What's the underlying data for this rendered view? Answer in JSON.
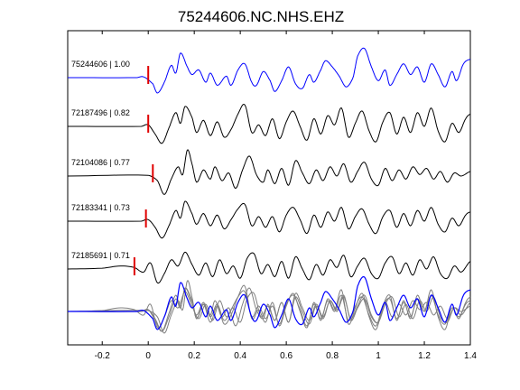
{
  "chart_data": {
    "type": "line",
    "title": "75244606.NC.NHS.EHZ",
    "xlabel": "",
    "ylabel": "",
    "xlim": [
      -0.35,
      1.4
    ],
    "x_ticks": [
      "-0.2",
      "0",
      "0.2",
      "0.4",
      "0.6",
      "0.8",
      "1",
      "1.2",
      "1.4"
    ],
    "x_tick_values": [
      -0.2,
      0,
      0.2,
      0.4,
      0.6,
      0.8,
      1.0,
      1.2,
      1.4
    ],
    "grid": false,
    "colors": {
      "reference": "#0000ff",
      "trace": "#000000",
      "overlay": "#808080",
      "pick": "#e00000"
    },
    "traces": [
      {
        "label": "75244606 | 1.00",
        "event_id": "75244606",
        "correlation": 1.0,
        "pick_time": 0.0,
        "reference": true,
        "anchors": [
          [
            -0.35,
            0
          ],
          [
            -0.05,
            0
          ],
          [
            -0.02,
            0.05
          ],
          [
            0.02,
            -0.4
          ],
          [
            0.04,
            -1.0
          ],
          [
            0.07,
            -0.3
          ],
          [
            0.1,
            0.8
          ],
          [
            0.12,
            0.3
          ],
          [
            0.14,
            1.6
          ],
          [
            0.17,
            0.7
          ],
          [
            0.19,
            0.2
          ],
          [
            0.22,
            0.5
          ],
          [
            0.25,
            -0.3
          ],
          [
            0.27,
            0.3
          ],
          [
            0.3,
            -0.5
          ],
          [
            0.34,
            0.1
          ],
          [
            0.36,
            -0.5
          ],
          [
            0.39,
            0.5
          ],
          [
            0.42,
            0.9
          ],
          [
            0.45,
            -0.3
          ],
          [
            0.47,
            -0.5
          ],
          [
            0.5,
            0.4
          ],
          [
            0.53,
            -0.2
          ],
          [
            0.55,
            -0.9
          ],
          [
            0.58,
            -0.2
          ],
          [
            0.61,
            0.7
          ],
          [
            0.64,
            -0.4
          ],
          [
            0.67,
            -0.7
          ],
          [
            0.7,
            0.2
          ],
          [
            0.72,
            -0.3
          ],
          [
            0.75,
            0.5
          ],
          [
            0.77,
            1.1
          ],
          [
            0.8,
            0.7
          ],
          [
            0.83,
            0.1
          ],
          [
            0.86,
            -0.6
          ],
          [
            0.89,
            0.0
          ],
          [
            0.91,
            1.4
          ],
          [
            0.94,
            1.9
          ],
          [
            0.97,
            0.7
          ],
          [
            1.0,
            -0.2
          ],
          [
            1.03,
            0.5
          ],
          [
            1.05,
            -0.5
          ],
          [
            1.08,
            0.2
          ],
          [
            1.11,
            0.9
          ],
          [
            1.14,
            0.2
          ],
          [
            1.17,
            0.7
          ],
          [
            1.2,
            -0.3
          ],
          [
            1.23,
            0.9
          ],
          [
            1.26,
            0.2
          ],
          [
            1.29,
            -0.6
          ],
          [
            1.32,
            0.4
          ],
          [
            1.34,
            -0.2
          ],
          [
            1.37,
            0.9
          ],
          [
            1.4,
            1.2
          ]
        ]
      },
      {
        "label": "72187496 | 0.82",
        "event_id": "72187496",
        "correlation": 0.82,
        "pick_time": 0.0,
        "reference": false,
        "anchors": [
          [
            -0.35,
            0
          ],
          [
            -0.03,
            0
          ],
          [
            0.0,
            0.1
          ],
          [
            0.03,
            -0.5
          ],
          [
            0.06,
            -1.1
          ],
          [
            0.09,
            -0.1
          ],
          [
            0.12,
            0.9
          ],
          [
            0.14,
            0.2
          ],
          [
            0.16,
            1.3
          ],
          [
            0.19,
            0.6
          ],
          [
            0.21,
            -0.4
          ],
          [
            0.24,
            0.4
          ],
          [
            0.27,
            -0.6
          ],
          [
            0.3,
            0.3
          ],
          [
            0.33,
            -0.7
          ],
          [
            0.36,
            -0.2
          ],
          [
            0.39,
            0.8
          ],
          [
            0.42,
            1.4
          ],
          [
            0.45,
            -0.4
          ],
          [
            0.48,
            0.1
          ],
          [
            0.51,
            -0.6
          ],
          [
            0.54,
            0.5
          ],
          [
            0.57,
            -0.8
          ],
          [
            0.6,
            0.3
          ],
          [
            0.63,
            1.0
          ],
          [
            0.66,
            0.0
          ],
          [
            0.69,
            -0.9
          ],
          [
            0.72,
            0.5
          ],
          [
            0.75,
            -0.5
          ],
          [
            0.78,
            0.7
          ],
          [
            0.81,
            0.1
          ],
          [
            0.84,
            1.2
          ],
          [
            0.87,
            -0.7
          ],
          [
            0.9,
            0.2
          ],
          [
            0.93,
            1.0
          ],
          [
            0.96,
            -0.3
          ],
          [
            0.99,
            -1.0
          ],
          [
            1.02,
            0.3
          ],
          [
            1.05,
            0.9
          ],
          [
            1.08,
            -0.5
          ],
          [
            1.11,
            0.6
          ],
          [
            1.14,
            -0.4
          ],
          [
            1.17,
            0.9
          ],
          [
            1.2,
            0.0
          ],
          [
            1.23,
            1.2
          ],
          [
            1.26,
            -0.3
          ],
          [
            1.29,
            -1.0
          ],
          [
            1.32,
            0.2
          ],
          [
            1.35,
            -0.4
          ],
          [
            1.38,
            0.5
          ],
          [
            1.4,
            0.8
          ]
        ]
      },
      {
        "label": "72104086 | 0.77",
        "event_id": "72104086",
        "correlation": 0.77,
        "pick_time": 0.02,
        "reference": false,
        "anchors": [
          [
            -0.35,
            0
          ],
          [
            0.0,
            0.05
          ],
          [
            0.04,
            -0.3
          ],
          [
            0.07,
            -1.2
          ],
          [
            0.1,
            -0.2
          ],
          [
            0.13,
            0.6
          ],
          [
            0.15,
            0.1
          ],
          [
            0.17,
            1.7
          ],
          [
            0.19,
            0.8
          ],
          [
            0.21,
            -0.4
          ],
          [
            0.24,
            0.4
          ],
          [
            0.27,
            -0.2
          ],
          [
            0.29,
            0.6
          ],
          [
            0.32,
            -0.3
          ],
          [
            0.35,
            0.2
          ],
          [
            0.38,
            -0.8
          ],
          [
            0.41,
            0.4
          ],
          [
            0.44,
            1.3
          ],
          [
            0.47,
            0.1
          ],
          [
            0.5,
            -0.4
          ],
          [
            0.52,
            0.4
          ],
          [
            0.55,
            -0.5
          ],
          [
            0.58,
            0.5
          ],
          [
            0.61,
            -0.6
          ],
          [
            0.64,
            1.0
          ],
          [
            0.67,
            0.2
          ],
          [
            0.7,
            -0.5
          ],
          [
            0.73,
            0.4
          ],
          [
            0.76,
            -0.3
          ],
          [
            0.79,
            0.6
          ],
          [
            0.82,
            0.0
          ],
          [
            0.85,
            0.8
          ],
          [
            0.88,
            -0.4
          ],
          [
            0.91,
            0.3
          ],
          [
            0.94,
            0.9
          ],
          [
            0.97,
            -0.2
          ],
          [
            1.0,
            -0.6
          ],
          [
            1.03,
            0.5
          ],
          [
            1.06,
            -0.3
          ],
          [
            1.09,
            0.4
          ],
          [
            1.12,
            -0.2
          ],
          [
            1.15,
            0.6
          ],
          [
            1.18,
            0.1
          ],
          [
            1.21,
            0.5
          ],
          [
            1.24,
            -0.2
          ],
          [
            1.27,
            0.3
          ],
          [
            1.3,
            -0.4
          ],
          [
            1.33,
            0.2
          ],
          [
            1.36,
            0.0
          ],
          [
            1.4,
            0.3
          ]
        ]
      },
      {
        "label": "72183341 | 0.73",
        "event_id": "72183341",
        "correlation": 0.73,
        "pick_time": -0.01,
        "reference": false,
        "anchors": [
          [
            -0.35,
            0
          ],
          [
            -0.03,
            0
          ],
          [
            0.0,
            0.1
          ],
          [
            0.03,
            -0.4
          ],
          [
            0.06,
            -1.1
          ],
          [
            0.09,
            -0.3
          ],
          [
            0.12,
            0.7
          ],
          [
            0.14,
            0.2
          ],
          [
            0.16,
            1.3
          ],
          [
            0.19,
            0.5
          ],
          [
            0.21,
            -0.2
          ],
          [
            0.24,
            0.5
          ],
          [
            0.27,
            -0.3
          ],
          [
            0.3,
            0.4
          ],
          [
            0.33,
            -0.5
          ],
          [
            0.36,
            0.1
          ],
          [
            0.39,
            0.8
          ],
          [
            0.42,
            1.1
          ],
          [
            0.45,
            -0.3
          ],
          [
            0.48,
            0.3
          ],
          [
            0.51,
            -0.4
          ],
          [
            0.54,
            0.3
          ],
          [
            0.57,
            -0.7
          ],
          [
            0.6,
            0.4
          ],
          [
            0.63,
            0.9
          ],
          [
            0.66,
            0.1
          ],
          [
            0.69,
            -0.8
          ],
          [
            0.72,
            0.4
          ],
          [
            0.75,
            -0.4
          ],
          [
            0.78,
            0.6
          ],
          [
            0.81,
            0.0
          ],
          [
            0.84,
            0.9
          ],
          [
            0.87,
            -0.5
          ],
          [
            0.9,
            0.3
          ],
          [
            0.93,
            0.8
          ],
          [
            0.96,
            -0.2
          ],
          [
            0.99,
            -0.8
          ],
          [
            1.02,
            0.3
          ],
          [
            1.05,
            0.7
          ],
          [
            1.08,
            -0.4
          ],
          [
            1.11,
            0.5
          ],
          [
            1.14,
            -0.3
          ],
          [
            1.17,
            0.7
          ],
          [
            1.2,
            0.0
          ],
          [
            1.23,
            0.9
          ],
          [
            1.26,
            -0.2
          ],
          [
            1.29,
            -0.7
          ],
          [
            1.32,
            0.2
          ],
          [
            1.35,
            -0.3
          ],
          [
            1.38,
            0.4
          ],
          [
            1.4,
            0.6
          ]
        ]
      },
      {
        "label": "72185691 | 0.71",
        "event_id": "72185691",
        "correlation": 0.71,
        "pick_time": -0.06,
        "reference": false,
        "anchors": [
          [
            -0.35,
            0
          ],
          [
            -0.2,
            0.05
          ],
          [
            -0.12,
            0.2
          ],
          [
            -0.06,
            0.1
          ],
          [
            -0.02,
            -0.2
          ],
          [
            0.01,
            0.4
          ],
          [
            0.04,
            -0.9
          ],
          [
            0.07,
            -0.3
          ],
          [
            0.1,
            0.6
          ],
          [
            0.13,
            0.2
          ],
          [
            0.16,
            1.1
          ],
          [
            0.19,
            0.3
          ],
          [
            0.22,
            -0.4
          ],
          [
            0.25,
            0.4
          ],
          [
            0.28,
            -0.5
          ],
          [
            0.31,
            0.6
          ],
          [
            0.34,
            -0.3
          ],
          [
            0.37,
            0.2
          ],
          [
            0.4,
            -0.6
          ],
          [
            0.43,
            0.7
          ],
          [
            0.46,
            1.0
          ],
          [
            0.49,
            -0.3
          ],
          [
            0.52,
            0.3
          ],
          [
            0.55,
            -0.5
          ],
          [
            0.58,
            0.5
          ],
          [
            0.61,
            -0.6
          ],
          [
            0.64,
            0.8
          ],
          [
            0.67,
            0.0
          ],
          [
            0.7,
            -0.7
          ],
          [
            0.73,
            0.3
          ],
          [
            0.76,
            -0.4
          ],
          [
            0.79,
            0.6
          ],
          [
            0.82,
            0.1
          ],
          [
            0.85,
            0.9
          ],
          [
            0.88,
            -0.5
          ],
          [
            0.91,
            0.2
          ],
          [
            0.94,
            0.7
          ],
          [
            0.97,
            -0.3
          ],
          [
            1.0,
            -0.6
          ],
          [
            1.03,
            0.4
          ],
          [
            1.06,
            0.8
          ],
          [
            1.09,
            -0.3
          ],
          [
            1.12,
            0.4
          ],
          [
            1.15,
            -0.4
          ],
          [
            1.18,
            0.6
          ],
          [
            1.21,
            0.0
          ],
          [
            1.24,
            0.8
          ],
          [
            1.27,
            -0.3
          ],
          [
            1.3,
            -0.6
          ],
          [
            1.33,
            0.2
          ],
          [
            1.36,
            -0.2
          ],
          [
            1.4,
            0.5
          ]
        ]
      }
    ]
  }
}
